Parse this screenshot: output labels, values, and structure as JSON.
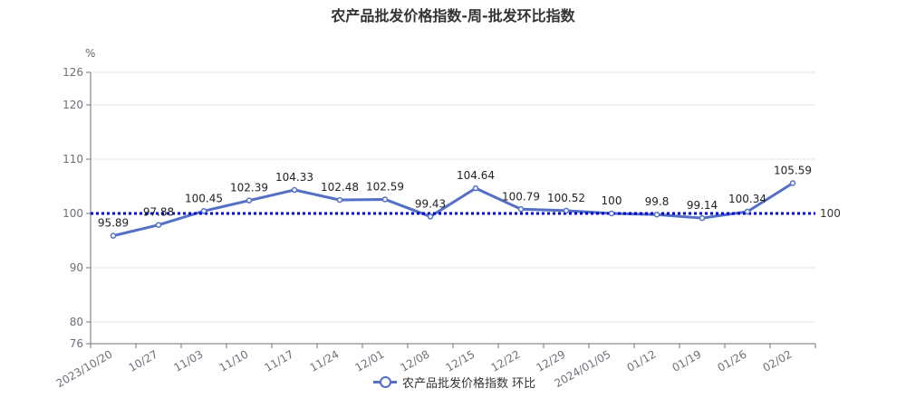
{
  "title": "农产品批发价格指数-周-批发环比指数",
  "unit_label": "%",
  "legend": {
    "label": "农产品批发价格指数 环比"
  },
  "colors": {
    "series": "#5470c6",
    "reference": "#0000cc"
  },
  "chart_data": {
    "type": "line",
    "title": "农产品批发价格指数-周-批发环比指数",
    "ylabel": "%",
    "categories": [
      "2023/10/20",
      "10/27",
      "11/03",
      "11/10",
      "11/17",
      "11/24",
      "12/01",
      "12/08",
      "12/15",
      "12/22",
      "12/29",
      "2024/01/05",
      "01/12",
      "01/19",
      "01/26",
      "02/02"
    ],
    "series": [
      {
        "name": "农产品批发价格指数 环比",
        "values": [
          95.89,
          97.88,
          100.45,
          102.39,
          104.33,
          102.48,
          102.59,
          99.43,
          104.64,
          100.79,
          100.52,
          100,
          99.8,
          99.14,
          100.34,
          105.59
        ],
        "labels": [
          "95.89",
          "97.88",
          "100.45",
          "102.39",
          "104.33",
          "102.48",
          "102.59",
          "99.43",
          "104.64",
          "100.79",
          "100.52",
          "100",
          "99.8",
          "99.14",
          "100.34",
          "105.59"
        ]
      }
    ],
    "yticks": [
      76,
      80,
      90,
      100,
      110,
      120,
      126
    ],
    "ylim": [
      76,
      126
    ],
    "reference_line": {
      "value": 100,
      "label": "100"
    },
    "grid": true,
    "legend_position": "bottom-center"
  }
}
